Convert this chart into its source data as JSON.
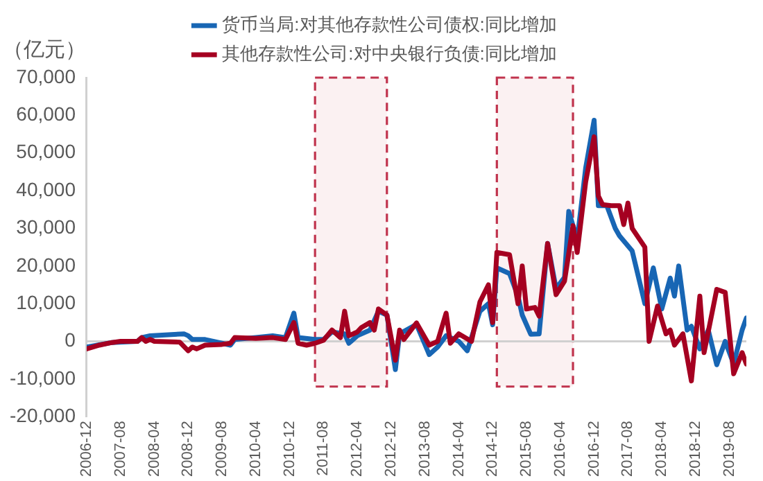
{
  "chart_data": {
    "type": "line",
    "ylabel": "（亿元）",
    "xlim": [
      "2006-12",
      "2019-12"
    ],
    "xticks": [
      "2006-12",
      "2007-08",
      "2008-04",
      "2008-12",
      "2009-08",
      "2010-04",
      "2010-12",
      "2011-08",
      "2012-04",
      "2012-12",
      "2013-08",
      "2014-04",
      "2014-12",
      "2015-08",
      "2016-04",
      "2016-12",
      "2017-08",
      "2018-04",
      "2018-12",
      "2019-08"
    ],
    "ylim": [
      -20000,
      70000
    ],
    "yticks": [
      {
        "value": -20000,
        "label": "-20,000"
      },
      {
        "value": -10000,
        "label": "-10,000"
      },
      0,
      {
        "value": 10000,
        "label": "10,000"
      },
      {
        "value": 20000,
        "label": "20,000"
      },
      {
        "value": 30000,
        "label": "30,000"
      },
      {
        "value": 40000,
        "label": "40,000"
      },
      {
        "value": 50000,
        "label": "50,000"
      },
      {
        "value": 60000,
        "label": "60,000"
      },
      {
        "value": 70000,
        "label": "70,000"
      }
    ],
    "grid": false,
    "legend": "top",
    "marker": "none",
    "line_style": "solid",
    "ref_lines": [
      {
        "axis": "y",
        "value": 0,
        "color": "#d0d0d0"
      }
    ],
    "bands": [
      {
        "axis": "x",
        "from": "2011-06",
        "to": "2012-11",
        "color": "#c0334d"
      },
      {
        "axis": "x",
        "from": "2015-01",
        "to": "2016-07",
        "color": "#c0334d"
      }
    ],
    "series": [
      {
        "name": "货币当局:对其他存款性公司债权:同比增加",
        "color": "#1866b4",
        "x": [
          "2006-12",
          "2007-06",
          "2007-12",
          "2008-01",
          "2008-03",
          "2008-08",
          "2008-11",
          "2008-12",
          "2009-01",
          "2009-04",
          "2009-08",
          "2009-10",
          "2009-11",
          "2010-04",
          "2010-08",
          "2010-11",
          "2011-01",
          "2011-02",
          "2011-06",
          "2011-08",
          "2011-10",
          "2012-01",
          "2012-02",
          "2012-04",
          "2012-07",
          "2012-09",
          "2012-11",
          "2013-01",
          "2013-02",
          "2013-06",
          "2013-09",
          "2013-11",
          "2014-01",
          "2014-04",
          "2014-06",
          "2014-09",
          "2014-11",
          "2014-12",
          "2015-01",
          "2015-04",
          "2015-06",
          "2015-07",
          "2015-09",
          "2015-11",
          "2016-01",
          "2016-03",
          "2016-05",
          "2016-06",
          "2016-08",
          "2016-10",
          "2016-12",
          "2017-01",
          "2017-03",
          "2017-05",
          "2017-06",
          "2017-09",
          "2017-12",
          "2018-02",
          "2018-04",
          "2018-06",
          "2018-07",
          "2018-08",
          "2018-10",
          "2018-11",
          "2019-01",
          "2019-03",
          "2019-05",
          "2019-07",
          "2019-09",
          "2019-11",
          "2019-12"
        ],
        "values": [
          -1500,
          -300,
          0,
          1000,
          1500,
          1800,
          2000,
          1500,
          500,
          500,
          -500,
          -1000,
          500,
          1000,
          1500,
          1000,
          7500,
          1000,
          500,
          500,
          2500,
          2000,
          -500,
          1500,
          3000,
          8000,
          7000,
          -7500,
          2000,
          4500,
          -3500,
          -1500,
          1500,
          0,
          -2500,
          8000,
          10000,
          4400,
          19500,
          18000,
          12000,
          7000,
          1900,
          2000,
          26000,
          14000,
          17000,
          34500,
          27000,
          46000,
          58700,
          36000,
          36000,
          30000,
          28000,
          24000,
          10000,
          19500,
          8600,
          16800,
          12000,
          20000,
          3000,
          4000,
          -2000,
          3000,
          -6200,
          0,
          -6000,
          3000,
          6200
        ]
      },
      {
        "name": "其他存款性公司:对中央银行负债:同比增加",
        "color": "#a50021",
        "x": [
          "2006-12",
          "2007-03",
          "2007-06",
          "2007-08",
          "2007-12",
          "2008-01",
          "2008-02",
          "2008-03",
          "2008-04",
          "2008-10",
          "2008-12",
          "2009-01",
          "2009-02",
          "2009-04",
          "2009-08",
          "2009-10",
          "2009-11",
          "2010-04",
          "2010-08",
          "2010-11",
          "2011-01",
          "2011-02",
          "2011-04",
          "2011-06",
          "2011-08",
          "2011-10",
          "2011-12",
          "2012-01",
          "2012-02",
          "2012-04",
          "2012-05",
          "2012-07",
          "2012-08",
          "2012-09",
          "2012-11",
          "2013-01",
          "2013-02",
          "2013-03",
          "2013-06",
          "2013-09",
          "2013-11",
          "2014-01",
          "2014-02",
          "2014-04",
          "2014-07",
          "2014-09",
          "2014-11",
          "2014-12",
          "2015-01",
          "2015-04",
          "2015-06",
          "2015-07",
          "2015-08",
          "2015-10",
          "2015-11",
          "2016-01",
          "2016-03",
          "2016-05",
          "2016-07",
          "2016-08",
          "2016-10",
          "2016-12",
          "2017-01",
          "2017-02",
          "2017-04",
          "2017-06",
          "2017-07",
          "2017-08",
          "2017-09",
          "2017-12",
          "2018-01",
          "2018-03",
          "2018-05",
          "2018-06",
          "2018-07",
          "2018-09",
          "2018-11",
          "2019-01",
          "2019-02",
          "2019-05",
          "2019-07",
          "2019-09",
          "2019-11",
          "2019-12"
        ],
        "values": [
          -2000,
          -1000,
          -300,
          0,
          0,
          1000,
          0,
          500,
          0,
          -200,
          -2500,
          -1500,
          -2000,
          -1000,
          -800,
          -500,
          1000,
          800,
          1000,
          500,
          5000,
          -500,
          -1000,
          -500,
          300,
          3000,
          1000,
          8000,
          1500,
          2500,
          3700,
          5000,
          3000,
          8600,
          7000,
          -5000,
          3000,
          500,
          4900,
          -1000,
          0,
          7500,
          -500,
          2000,
          0,
          10500,
          15000,
          5000,
          23600,
          23000,
          10000,
          20000,
          8600,
          9000,
          6700,
          26000,
          12400,
          16000,
          30700,
          23600,
          42300,
          54300,
          38600,
          36300,
          36000,
          36000,
          31000,
          36700,
          30000,
          25000,
          0,
          9400,
          2000,
          3000,
          -1000,
          2000,
          -10500,
          12000,
          -3000,
          13800,
          13000,
          -8600,
          -3000,
          -6000
        ]
      }
    ]
  }
}
